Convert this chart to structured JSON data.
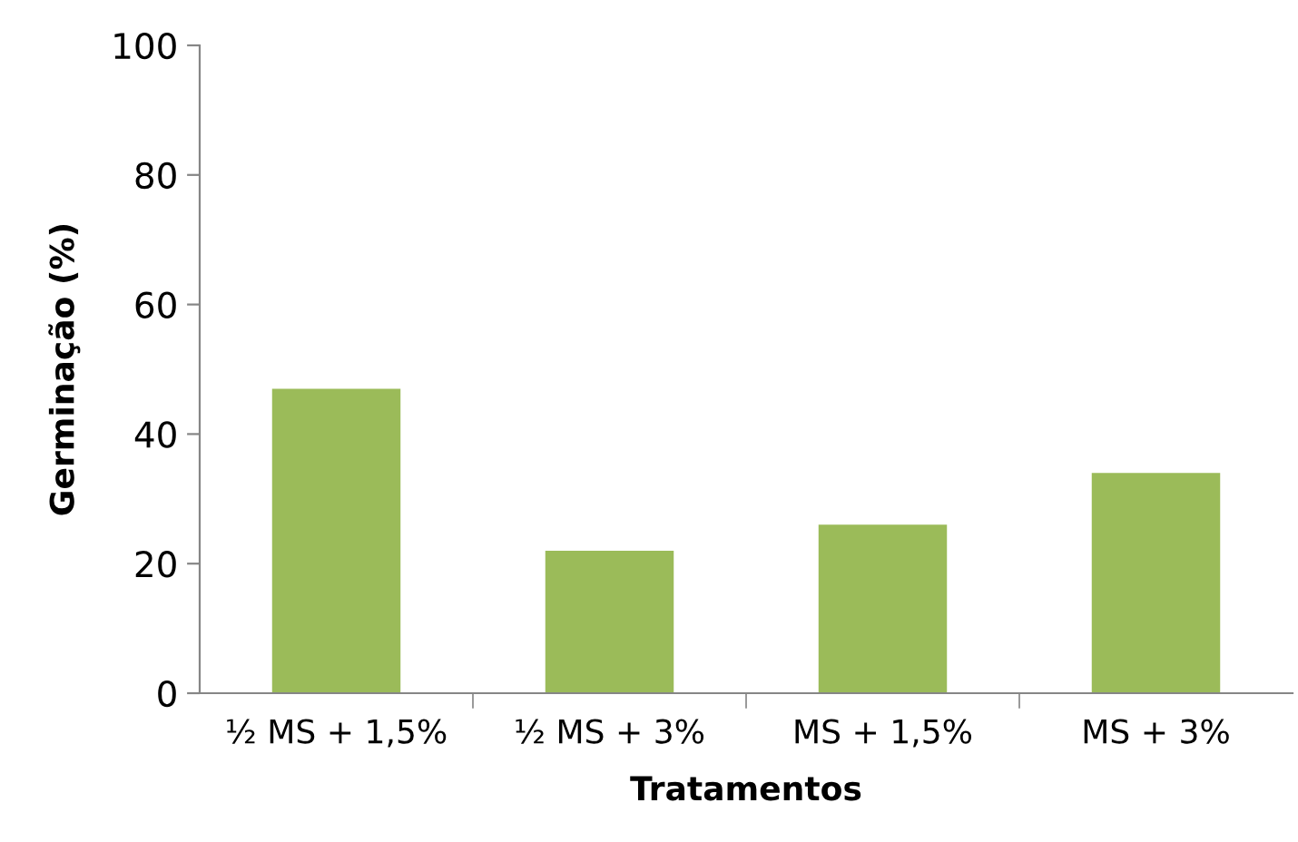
{
  "chart_data": {
    "type": "bar",
    "xlabel": "Tratamentos",
    "ylabel": "Germinação (%)",
    "categories": [
      "½ MS + 1,5%",
      "½ MS + 3%",
      "MS + 1,5%",
      "MS + 3%"
    ],
    "values": [
      47,
      22,
      26,
      34
    ],
    "color": "#9bbb59",
    "ylim": [
      0,
      100
    ],
    "yticks": [
      0,
      20,
      40,
      60,
      80,
      100
    ],
    "grid": false
  }
}
